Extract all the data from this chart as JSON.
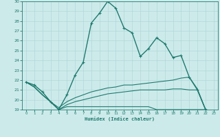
{
  "xlabel": "Humidex (Indice chaleur)",
  "xlim": [
    -0.5,
    23.5
  ],
  "ylim": [
    19,
    30
  ],
  "yticks": [
    19,
    20,
    21,
    22,
    23,
    24,
    25,
    26,
    27,
    28,
    29,
    30
  ],
  "xticks": [
    0,
    1,
    2,
    3,
    4,
    5,
    6,
    7,
    8,
    9,
    10,
    11,
    12,
    13,
    14,
    15,
    16,
    17,
    18,
    19,
    20,
    21,
    22,
    23
  ],
  "bg_color": "#cdeaea",
  "grid_color": "#b0d8d8",
  "line_color": "#1e7a6e",
  "lines": [
    {
      "x": [
        0,
        1,
        2,
        3,
        4,
        5,
        6,
        7,
        8,
        9,
        10,
        11,
        12,
        13,
        14,
        15,
        16,
        17,
        18,
        19,
        20,
        21,
        22,
        23
      ],
      "y": [
        21.8,
        21.5,
        20.8,
        19.8,
        19.0,
        20.5,
        22.5,
        23.8,
        27.8,
        28.8,
        30.0,
        29.3,
        27.3,
        26.8,
        24.4,
        25.2,
        26.3,
        25.7,
        24.3,
        24.5,
        22.3,
        21.0,
        19.0,
        18.8
      ],
      "marker": true,
      "linewidth": 1.0,
      "markersize": 2.5,
      "zorder": 3
    },
    {
      "x": [
        0,
        1,
        2,
        3,
        4,
        5,
        6,
        7,
        8,
        9,
        10,
        11,
        12,
        13,
        14,
        15,
        16,
        17,
        18,
        19,
        20,
        21,
        22,
        23
      ],
      "y": [
        21.8,
        21.3,
        20.5,
        19.8,
        19.2,
        19.8,
        20.2,
        20.5,
        20.8,
        21.0,
        21.2,
        21.3,
        21.5,
        21.5,
        21.6,
        21.7,
        21.8,
        21.9,
        22.0,
        22.2,
        22.3,
        21.1,
        19.0,
        18.8
      ],
      "marker": false,
      "linewidth": 0.8,
      "markersize": 0,
      "zorder": 2
    },
    {
      "x": [
        0,
        1,
        2,
        3,
        4,
        5,
        6,
        7,
        8,
        9,
        10,
        11,
        12,
        13,
        14,
        15,
        16,
        17,
        18,
        19,
        20,
        21,
        22,
        23
      ],
      "y": [
        21.8,
        21.3,
        20.5,
        19.8,
        19.0,
        19.5,
        19.8,
        20.0,
        20.2,
        20.4,
        20.6,
        20.7,
        20.8,
        20.9,
        21.0,
        21.0,
        21.0,
        21.0,
        21.1,
        21.1,
        21.0,
        21.0,
        19.0,
        18.8
      ],
      "marker": false,
      "linewidth": 0.8,
      "markersize": 0,
      "zorder": 2
    },
    {
      "x": [
        0,
        1,
        2,
        3,
        4,
        5,
        6,
        7,
        8,
        9,
        10,
        11,
        12,
        13,
        14,
        15,
        16,
        17,
        18,
        19,
        20,
        21,
        22,
        23
      ],
      "y": [
        21.8,
        21.3,
        20.5,
        19.8,
        19.0,
        19.3,
        19.3,
        19.3,
        19.3,
        19.3,
        19.3,
        19.3,
        19.3,
        19.3,
        19.3,
        19.3,
        19.0,
        19.0,
        19.0,
        19.0,
        19.0,
        19.0,
        19.0,
        18.8
      ],
      "marker": false,
      "linewidth": 0.8,
      "markersize": 0,
      "zorder": 2
    }
  ]
}
